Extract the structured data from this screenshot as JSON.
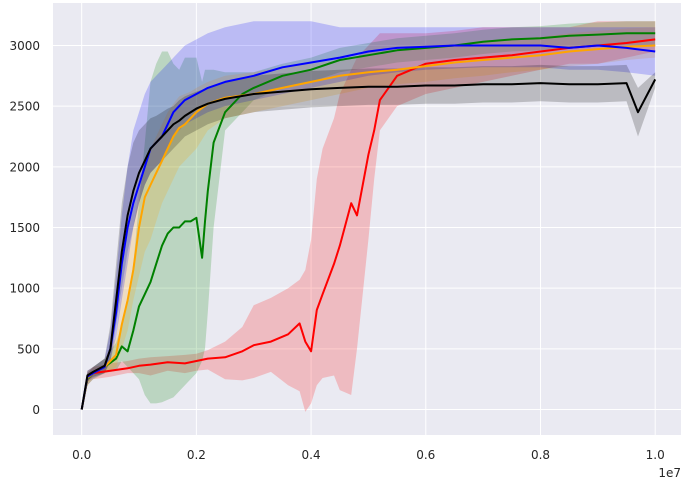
{
  "chart_data": {
    "type": "line",
    "title": "",
    "xlabel": "",
    "ylabel": "",
    "x_offset_label": "1e7",
    "xlim": [
      -0.05,
      1.045
    ],
    "ylim": [
      -210,
      3350
    ],
    "x_ticks": [
      0.0,
      0.2,
      0.4,
      0.6,
      0.8,
      1.0
    ],
    "x_tick_labels": [
      "0.0",
      "0.2",
      "0.4",
      "0.6",
      "0.8",
      "1.0"
    ],
    "y_ticks": [
      0,
      500,
      1000,
      1500,
      2000,
      2500,
      3000
    ],
    "y_tick_labels": [
      "0",
      "500",
      "1000",
      "1500",
      "2000",
      "2500",
      "3000"
    ],
    "grid": true,
    "legend": "none",
    "background": "#eaeaf2",
    "series": [
      {
        "color": "#ff0000",
        "x": [
          0.0,
          0.01,
          0.02,
          0.05,
          0.08,
          0.1,
          0.12,
          0.15,
          0.18,
          0.2,
          0.22,
          0.25,
          0.28,
          0.3,
          0.33,
          0.36,
          0.38,
          0.39,
          0.4,
          0.41,
          0.42,
          0.44,
          0.45,
          0.47,
          0.48,
          0.5,
          0.51,
          0.52,
          0.55,
          0.6,
          0.65,
          0.7,
          0.75,
          0.8,
          0.85,
          0.9,
          0.95,
          1.0
        ],
        "y": [
          0,
          250,
          300,
          320,
          340,
          360,
          370,
          390,
          380,
          400,
          420,
          430,
          480,
          530,
          560,
          620,
          710,
          560,
          480,
          820,
          950,
          1200,
          1350,
          1700,
          1600,
          2100,
          2300,
          2550,
          2750,
          2850,
          2880,
          2900,
          2920,
          2950,
          2980,
          3000,
          3020,
          3050
        ],
        "band_low": [
          0,
          200,
          250,
          270,
          300,
          300,
          280,
          320,
          300,
          320,
          330,
          250,
          240,
          260,
          310,
          200,
          150,
          -20,
          50,
          200,
          260,
          280,
          160,
          120,
          500,
          1400,
          1900,
          2300,
          2500,
          2600,
          2650,
          2700,
          2750,
          2800,
          2850,
          2850,
          2900,
          2950
        ],
        "band_high": [
          0,
          300,
          350,
          380,
          400,
          420,
          430,
          440,
          450,
          460,
          490,
          560,
          680,
          860,
          920,
          1000,
          1070,
          1150,
          1400,
          1900,
          2150,
          2400,
          2600,
          2800,
          2900,
          3000,
          3050,
          3100,
          3100,
          3100,
          3120,
          3150,
          3150,
          3150,
          3150,
          3200,
          3200,
          3200
        ]
      },
      {
        "color": "#008000",
        "x": [
          0.0,
          0.01,
          0.02,
          0.04,
          0.06,
          0.07,
          0.08,
          0.09,
          0.1,
          0.11,
          0.12,
          0.13,
          0.14,
          0.15,
          0.16,
          0.17,
          0.18,
          0.19,
          0.2,
          0.21,
          0.215,
          0.22,
          0.23,
          0.25,
          0.28,
          0.3,
          0.35,
          0.4,
          0.45,
          0.5,
          0.55,
          0.6,
          0.65,
          0.7,
          0.75,
          0.8,
          0.85,
          0.9,
          0.95,
          1.0
        ],
        "y": [
          0,
          250,
          300,
          350,
          420,
          520,
          480,
          650,
          850,
          950,
          1050,
          1200,
          1350,
          1450,
          1500,
          1500,
          1550,
          1550,
          1580,
          1250,
          1550,
          1800,
          2200,
          2450,
          2600,
          2650,
          2750,
          2800,
          2880,
          2920,
          2960,
          2980,
          3000,
          3030,
          3050,
          3060,
          3080,
          3090,
          3100,
          3100
        ],
        "band_low": [
          0,
          200,
          250,
          300,
          320,
          400,
          350,
          300,
          250,
          120,
          50,
          50,
          60,
          80,
          100,
          150,
          200,
          250,
          300,
          400,
          500,
          800,
          1500,
          2300,
          2450,
          2550,
          2650,
          2700,
          2780,
          2820,
          2860,
          2880,
          2900,
          2930,
          2950,
          2960,
          2980,
          2990,
          3000,
          3000
        ],
        "band_high": [
          0,
          300,
          350,
          420,
          550,
          700,
          900,
          1200,
          1700,
          2200,
          2700,
          2850,
          2950,
          2950,
          2850,
          2800,
          2900,
          2900,
          2900,
          2700,
          2800,
          2800,
          2800,
          2780,
          2780,
          2780,
          2850,
          2900,
          2980,
          3020,
          3060,
          3080,
          3100,
          3130,
          3150,
          3160,
          3180,
          3190,
          3200,
          3200
        ]
      },
      {
        "color": "#ffa500",
        "x": [
          0.0,
          0.01,
          0.02,
          0.04,
          0.06,
          0.07,
          0.08,
          0.09,
          0.1,
          0.11,
          0.12,
          0.13,
          0.14,
          0.15,
          0.16,
          0.17,
          0.18,
          0.19,
          0.2,
          0.22,
          0.25,
          0.3,
          0.35,
          0.4,
          0.45,
          0.5,
          0.55,
          0.6,
          0.65,
          0.7,
          0.75,
          0.8,
          0.85,
          0.9,
          0.95,
          1.0
        ],
        "y": [
          0,
          260,
          300,
          350,
          450,
          700,
          900,
          1150,
          1500,
          1750,
          1850,
          1950,
          2050,
          2150,
          2250,
          2320,
          2350,
          2400,
          2450,
          2520,
          2570,
          2600,
          2650,
          2700,
          2750,
          2780,
          2800,
          2830,
          2860,
          2880,
          2900,
          2920,
          2950,
          2970,
          2990,
          3000
        ],
        "band_low": [
          0,
          220,
          260,
          300,
          350,
          500,
          650,
          900,
          1100,
          1300,
          1400,
          1550,
          1700,
          1800,
          1900,
          2000,
          2050,
          2100,
          2150,
          2300,
          2400,
          2450,
          2500,
          2550,
          2600,
          2650,
          2680,
          2700,
          2730,
          2750,
          2780,
          2800,
          2830,
          2850,
          2880,
          2900
        ],
        "band_high": [
          0,
          320,
          350,
          420,
          600,
          1000,
          1300,
          1500,
          1800,
          2000,
          2150,
          2250,
          2350,
          2450,
          2520,
          2580,
          2600,
          2620,
          2650,
          2700,
          2750,
          2780,
          2820,
          2850,
          2880,
          2920,
          2950,
          2980,
          3000,
          3020,
          3050,
          3070,
          3100,
          3120,
          3140,
          3150
        ]
      },
      {
        "color": "#0000ff",
        "x": [
          0.0,
          0.01,
          0.02,
          0.04,
          0.05,
          0.06,
          0.07,
          0.08,
          0.09,
          0.1,
          0.11,
          0.12,
          0.13,
          0.14,
          0.15,
          0.16,
          0.17,
          0.18,
          0.2,
          0.22,
          0.25,
          0.3,
          0.35,
          0.4,
          0.45,
          0.5,
          0.55,
          0.6,
          0.65,
          0.7,
          0.75,
          0.8,
          0.85,
          0.9,
          0.95,
          1.0
        ],
        "y": [
          0,
          270,
          300,
          350,
          500,
          800,
          1200,
          1500,
          1700,
          1850,
          2000,
          2150,
          2200,
          2250,
          2350,
          2450,
          2500,
          2550,
          2600,
          2650,
          2700,
          2750,
          2820,
          2860,
          2900,
          2950,
          2980,
          2990,
          3000,
          3000,
          3000,
          3000,
          2980,
          3000,
          2980,
          2950
        ],
        "band_low": [
          0,
          230,
          260,
          300,
          400,
          600,
          900,
          1200,
          1500,
          1700,
          1850,
          1950,
          2000,
          2050,
          2150,
          2250,
          2300,
          2350,
          2400,
          2450,
          2500,
          2550,
          2600,
          2650,
          2700,
          2750,
          2780,
          2800,
          2810,
          2820,
          2820,
          2820,
          2800,
          2800,
          2780,
          2750
        ],
        "band_high": [
          0,
          320,
          350,
          420,
          650,
          1100,
          1600,
          2000,
          2300,
          2450,
          2600,
          2700,
          2750,
          2800,
          2850,
          2900,
          2950,
          3000,
          3050,
          3100,
          3150,
          3200,
          3200,
          3200,
          3150,
          3150,
          3150,
          3150,
          3150,
          3150,
          3150,
          3150,
          3150,
          3150,
          3150,
          3150
        ]
      },
      {
        "color": "#000000",
        "x": [
          0.0,
          0.01,
          0.02,
          0.04,
          0.05,
          0.06,
          0.07,
          0.08,
          0.09,
          0.1,
          0.11,
          0.12,
          0.13,
          0.14,
          0.15,
          0.16,
          0.17,
          0.18,
          0.2,
          0.22,
          0.25,
          0.3,
          0.35,
          0.4,
          0.45,
          0.5,
          0.55,
          0.6,
          0.65,
          0.7,
          0.75,
          0.8,
          0.85,
          0.9,
          0.95,
          0.97,
          1.0
        ],
        "y": [
          0,
          280,
          310,
          360,
          500,
          900,
          1300,
          1600,
          1800,
          1950,
          2050,
          2150,
          2200,
          2250,
          2300,
          2350,
          2380,
          2420,
          2480,
          2520,
          2560,
          2600,
          2620,
          2640,
          2650,
          2660,
          2660,
          2670,
          2670,
          2680,
          2680,
          2690,
          2680,
          2680,
          2690,
          2450,
          2720
        ],
        "band_low": [
          0,
          240,
          270,
          300,
          400,
          700,
          1000,
          1300,
          1500,
          1700,
          1850,
          1950,
          2000,
          2050,
          2100,
          2150,
          2200,
          2250,
          2300,
          2350,
          2400,
          2450,
          2470,
          2490,
          2500,
          2510,
          2510,
          2520,
          2520,
          2530,
          2530,
          2540,
          2530,
          2530,
          2540,
          2250,
          2650
        ],
        "band_high": [
          0,
          320,
          350,
          420,
          700,
          1200,
          1700,
          2000,
          2200,
          2300,
          2350,
          2400,
          2420,
          2450,
          2480,
          2500,
          2550,
          2580,
          2620,
          2650,
          2700,
          2750,
          2770,
          2790,
          2800,
          2810,
          2810,
          2820,
          2820,
          2830,
          2830,
          2840,
          2830,
          2830,
          2840,
          2650,
          2780
        ]
      }
    ]
  }
}
